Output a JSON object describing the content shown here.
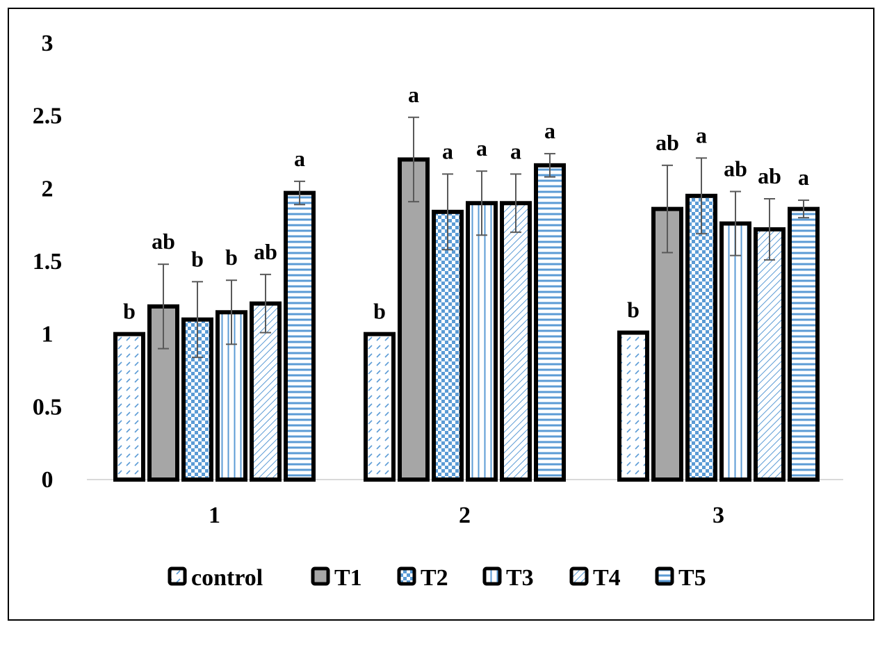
{
  "chart_data": {
    "type": "bar",
    "title": "",
    "xlabel": "",
    "ylabel": "",
    "ylim": [
      0,
      3
    ],
    "yticks": [
      "0",
      "0.5",
      "1",
      "1.5",
      "2",
      "2.5",
      "3"
    ],
    "categories": [
      "1",
      "2",
      "3"
    ],
    "grid": false,
    "legend_position": "bottom",
    "series": [
      {
        "name": "control",
        "pattern": "diagonal-dash",
        "values": [
          1.0,
          1.0,
          1.01
        ],
        "errors": [
          0,
          0,
          0
        ],
        "letters": [
          "b",
          "b",
          "b"
        ]
      },
      {
        "name": "T1",
        "pattern": "solid-gray",
        "values": [
          1.19,
          2.2,
          1.86
        ],
        "errors": [
          0.29,
          0.29,
          0.3
        ],
        "letters": [
          "ab",
          "a",
          "ab"
        ]
      },
      {
        "name": "T2",
        "pattern": "checker",
        "values": [
          1.1,
          1.84,
          1.95
        ],
        "errors": [
          0.26,
          0.26,
          0.26
        ],
        "letters": [
          "b",
          "a",
          "a"
        ]
      },
      {
        "name": "T3",
        "pattern": "vertical-lines",
        "values": [
          1.15,
          1.9,
          1.76
        ],
        "errors": [
          0.22,
          0.22,
          0.22
        ],
        "letters": [
          "b",
          "a",
          "ab"
        ]
      },
      {
        "name": "T4",
        "pattern": "diagonal-lines",
        "values": [
          1.21,
          1.9,
          1.72
        ],
        "errors": [
          0.2,
          0.2,
          0.21
        ],
        "letters": [
          "ab",
          "a",
          "ab"
        ]
      },
      {
        "name": "T5",
        "pattern": "horizontal-lines",
        "values": [
          1.97,
          2.16,
          1.86
        ],
        "errors": [
          0.08,
          0.08,
          0.06
        ],
        "letters": [
          "a",
          "a",
          "a"
        ]
      }
    ],
    "colors": {
      "accent_blue": "#5b9bd5",
      "gray_fill": "#a6a6a6",
      "bar_outline": "#000000",
      "axis_line": "#d9d9d9",
      "error_bar": "#595959"
    }
  }
}
